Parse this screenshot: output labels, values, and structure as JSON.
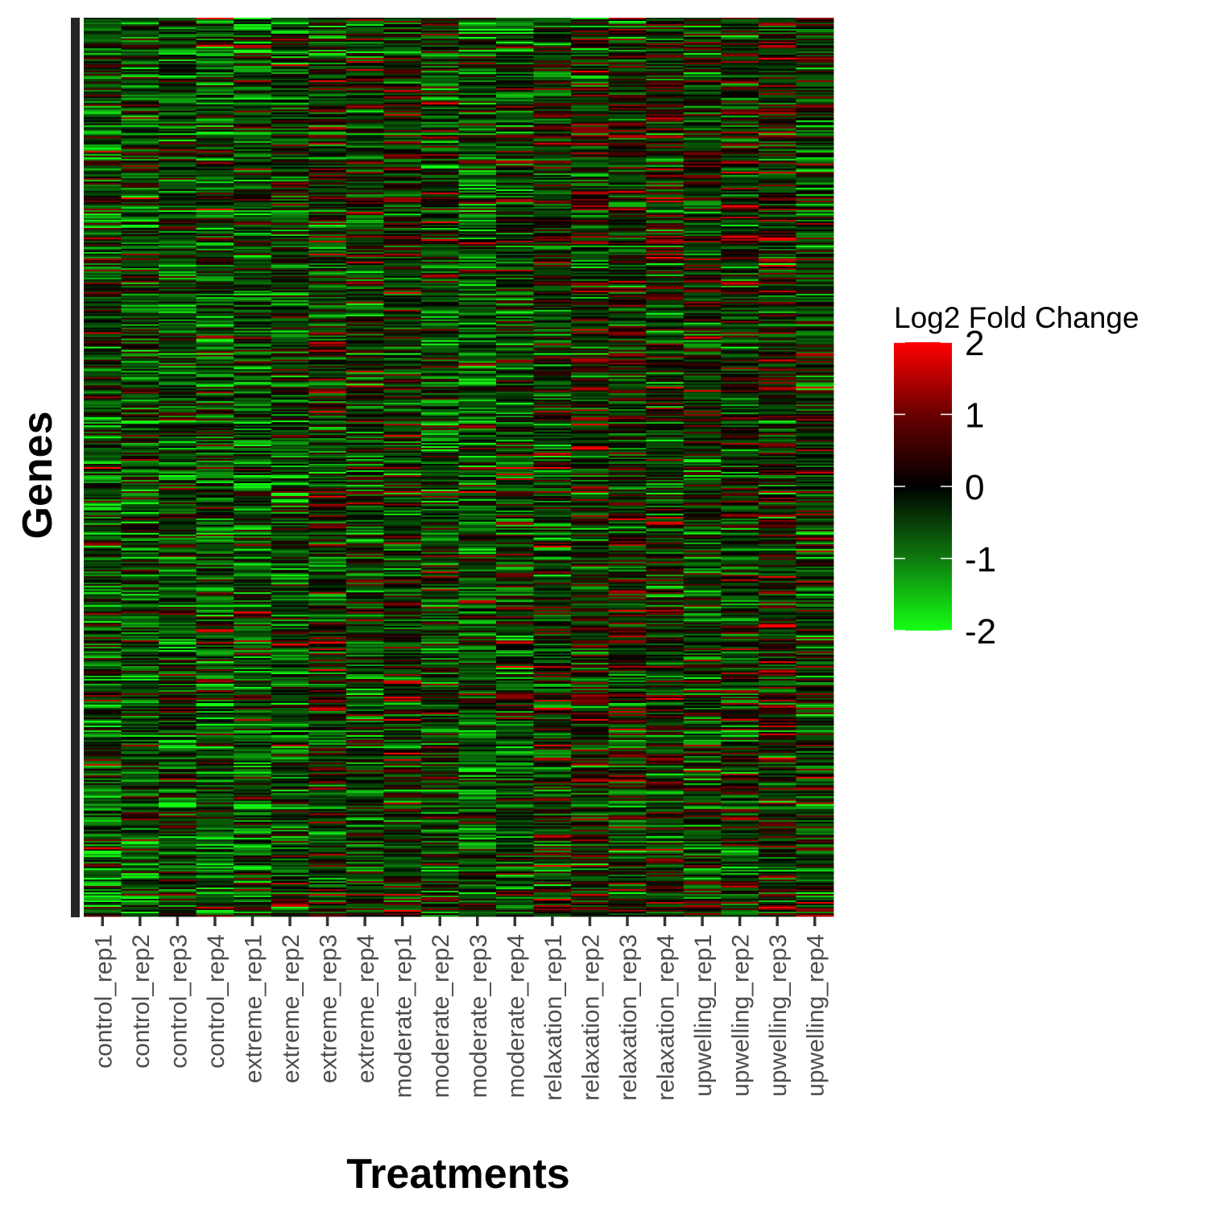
{
  "chart_data": {
    "type": "heatmap",
    "title": "",
    "xlabel": "Treatments",
    "ylabel": "Genes",
    "categories": [
      "control_rep1",
      "control_rep2",
      "control_rep3",
      "control_rep4",
      "extreme_rep1",
      "extreme_rep2",
      "extreme_rep3",
      "extreme_rep4",
      "moderate_rep1",
      "moderate_rep2",
      "moderate_rep3",
      "moderate_rep4",
      "relaxation_rep1",
      "relaxation_rep2",
      "relaxation_rep3",
      "relaxation_rep4",
      "upwelling_rep1",
      "upwelling_rep2",
      "upwelling_rep3",
      "upwelling_rep4"
    ],
    "gene_count_approx": 560,
    "column_mean_log2fc": [
      -0.45,
      -0.5,
      -0.45,
      -0.55,
      -0.55,
      -0.45,
      -0.15,
      -0.3,
      -0.1,
      -0.3,
      -0.5,
      -0.35,
      -0.15,
      -0.1,
      -0.05,
      -0.1,
      -0.25,
      -0.15,
      -0.05,
      -0.25
    ],
    "legend": {
      "title": "Log2 Fold Change",
      "min": -2,
      "max": 2,
      "ticks": [
        "2",
        "1",
        "0",
        "-1",
        "-2"
      ],
      "low_color": "#15ff15",
      "mid_color": "#000000",
      "high_color": "#ff0000",
      "placement": "right"
    }
  }
}
